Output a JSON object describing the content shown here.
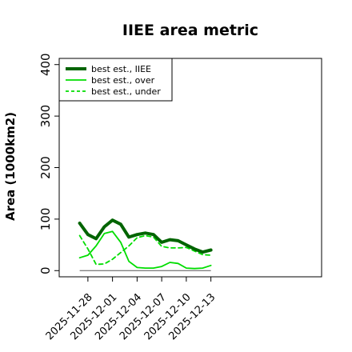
{
  "chart_data": {
    "type": "line",
    "title": "IIEE area metric",
    "ylabel": "Area (1000km2)",
    "xlabel": "",
    "ylim": [
      -12,
      412
    ],
    "xlim": [
      -2.5,
      29.5
    ],
    "yticks": [
      0,
      100,
      200,
      300,
      400
    ],
    "xticks": [
      {
        "x": 1,
        "label": "2025-11-28"
      },
      {
        "x": 4,
        "label": "2025-12-01"
      },
      {
        "x": 7,
        "label": "2025-12-04"
      },
      {
        "x": 10,
        "label": "2025-12-07"
      },
      {
        "x": 13,
        "label": "2025-12-10"
      },
      {
        "x": 16,
        "label": "2025-12-13"
      }
    ],
    "legend_position": "top-left",
    "grid": false,
    "baseline": 0,
    "x": [
      0,
      1,
      2,
      3,
      4,
      5,
      6,
      7,
      8,
      9,
      10,
      11,
      12,
      13,
      14,
      15,
      16
    ],
    "series": [
      {
        "name": "best est., IIEE",
        "color": "#006400",
        "style": "solid",
        "width": 4,
        "values": [
          92,
          70,
          62,
          85,
          98,
          90,
          65,
          70,
          73,
          70,
          55,
          60,
          58,
          50,
          42,
          36,
          40
        ]
      },
      {
        "name": "best est., over",
        "color": "#00dd00",
        "style": "solid",
        "width": 1.8,
        "values": [
          25,
          30,
          48,
          72,
          76,
          55,
          18,
          6,
          5,
          5,
          8,
          16,
          14,
          5,
          4,
          5,
          10
        ]
      },
      {
        "name": "best est., under",
        "color": "#00dd00",
        "style": "dashed",
        "width": 1.8,
        "values": [
          68,
          42,
          12,
          13,
          22,
          35,
          48,
          64,
          68,
          65,
          47,
          44,
          44,
          45,
          38,
          31,
          30
        ]
      }
    ]
  }
}
